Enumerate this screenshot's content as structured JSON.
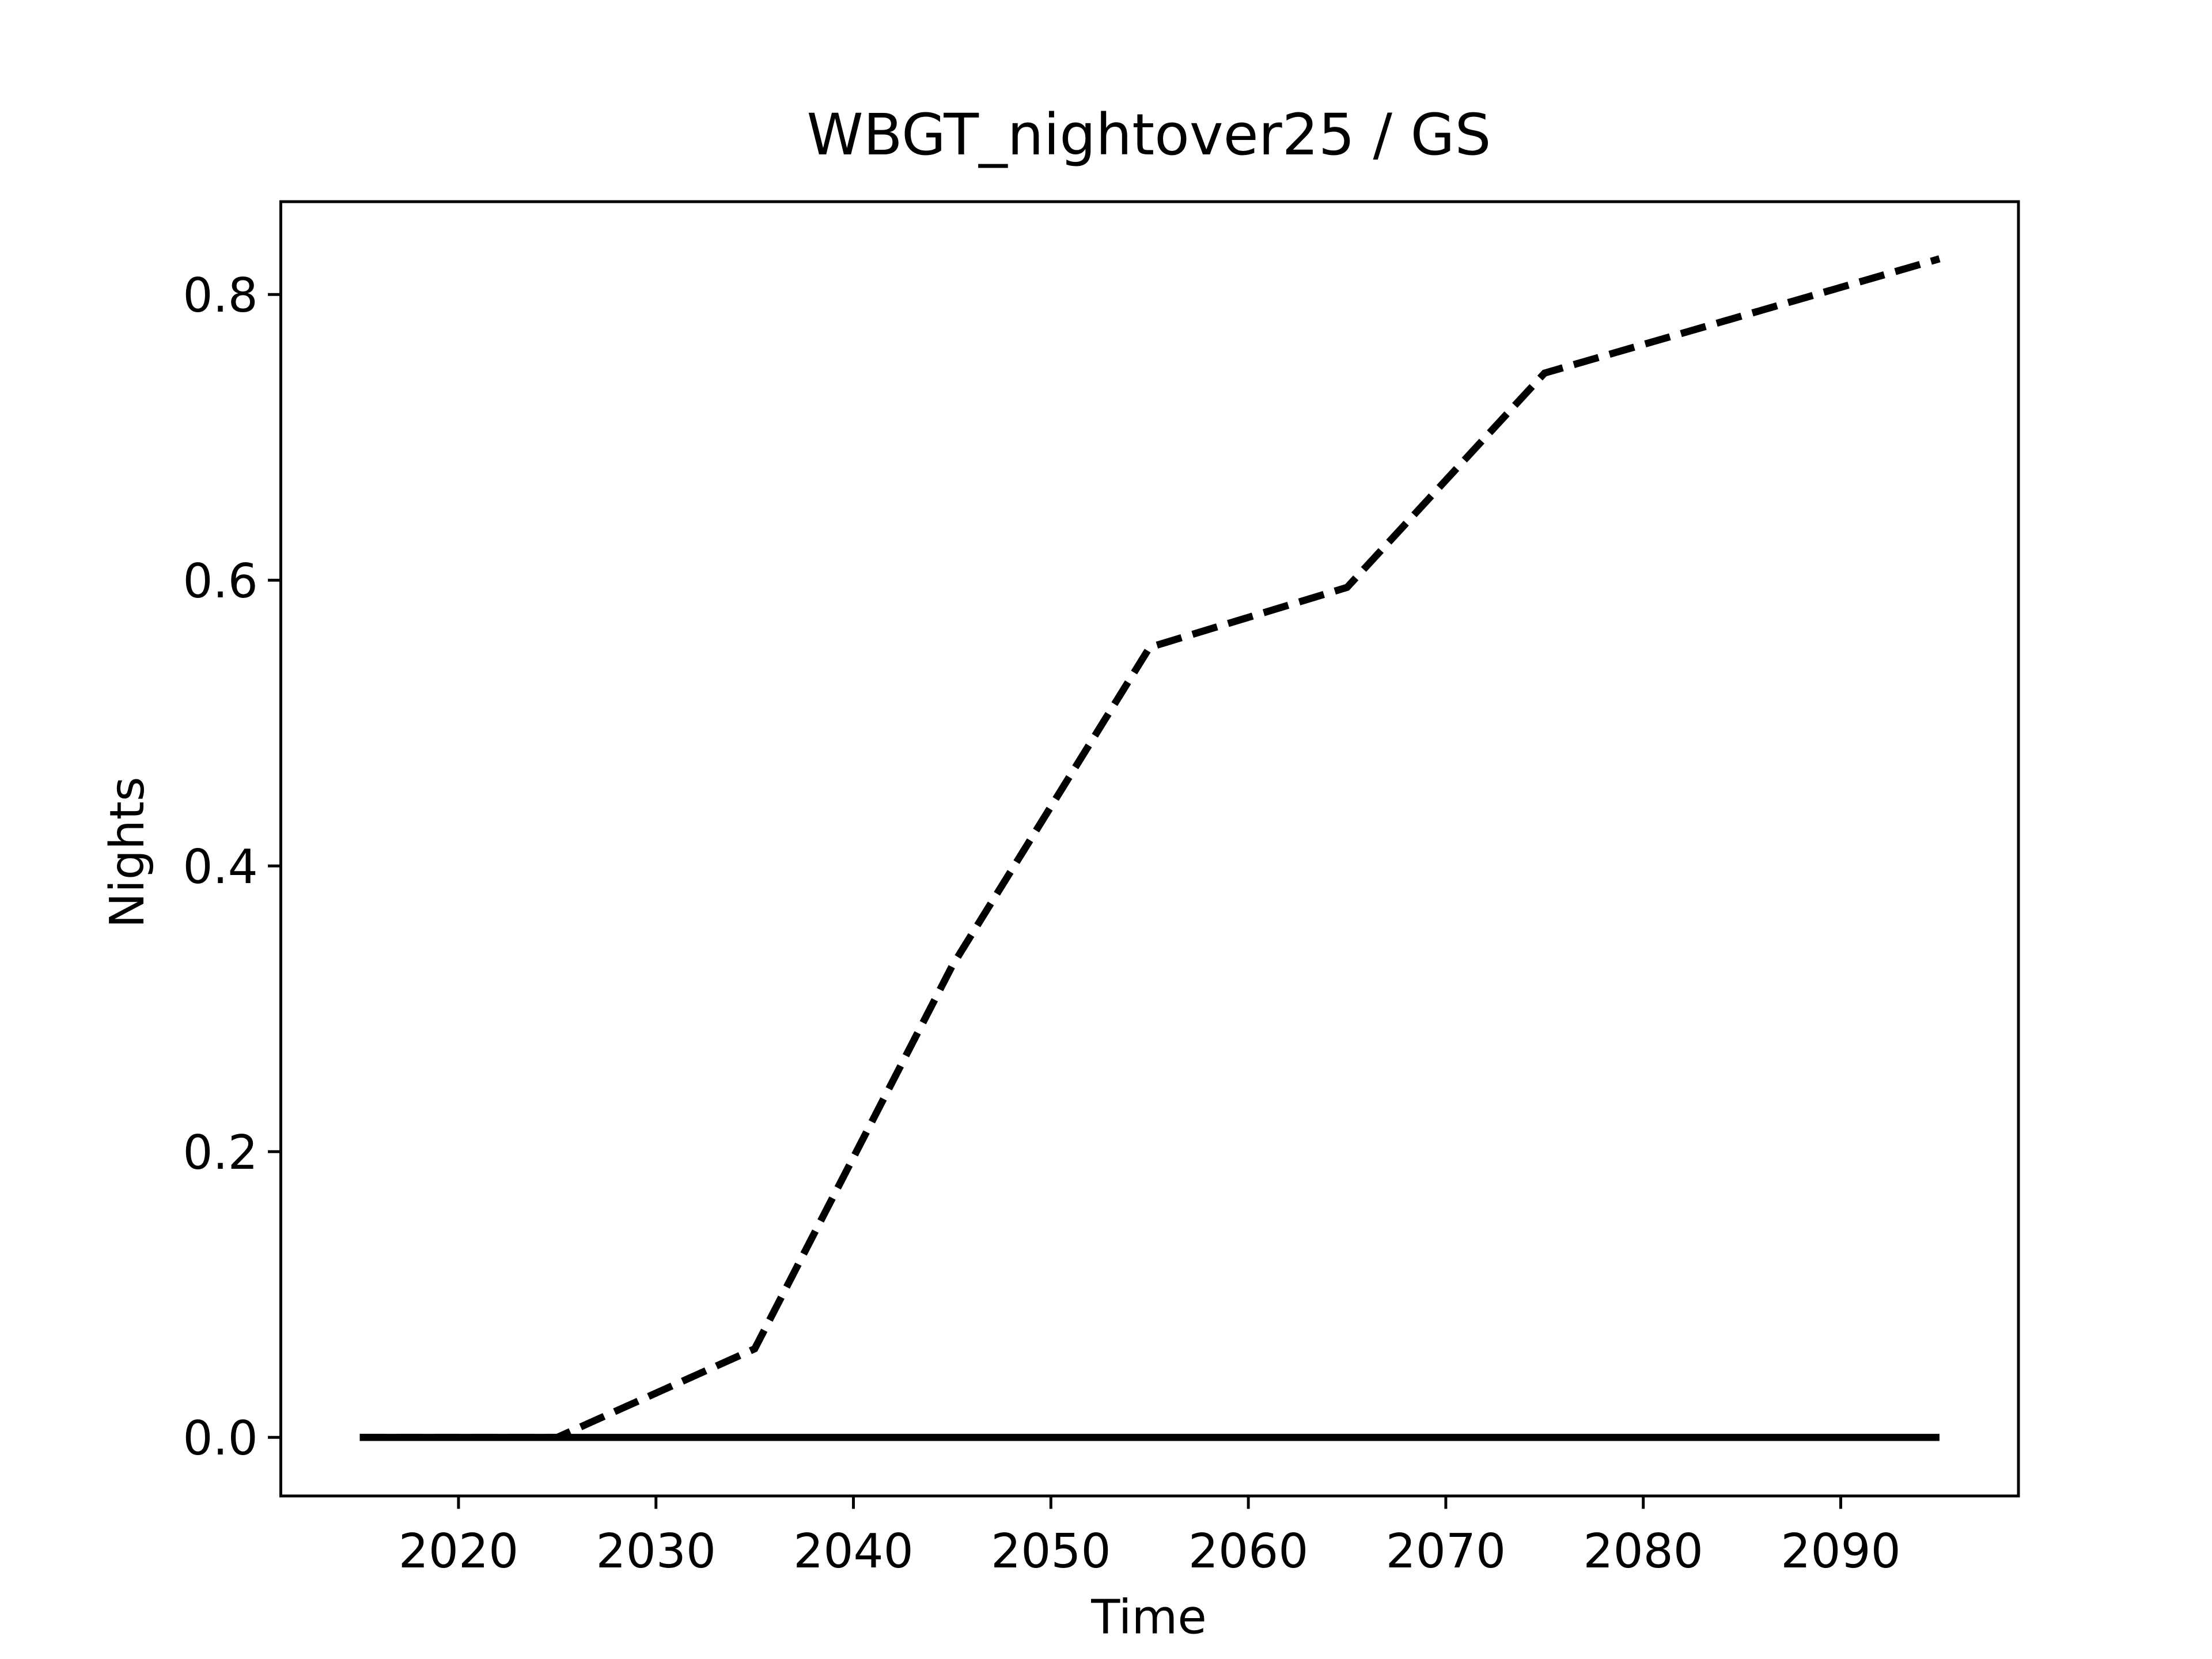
{
  "chart_data": {
    "type": "line",
    "title": "WBGT_nightover25 / GS",
    "x_label": "Time",
    "y_label": "Nights",
    "x": [
      2015,
      2025,
      2035,
      2045,
      2055,
      2065,
      2075,
      2085,
      2095
    ],
    "series": [
      {
        "color": "#000000",
        "style": "dashed",
        "values": [
          0,
          0,
          0.062,
          0.33,
          0.553,
          0.595,
          0.745,
          0.785,
          0.825
        ]
      },
      {
        "color": "#000000",
        "style": "solid",
        "values": [
          0,
          0,
          0,
          0,
          0,
          0,
          0,
          0,
          0
        ]
      }
    ],
    "xlim": [
      2011,
      2099
    ],
    "xticks": [
      2020,
      2030,
      2040,
      2050,
      2060,
      2070,
      2080,
      2090
    ],
    "ylim": [
      -0.041,
      0.865
    ],
    "yticks": [
      {
        "value": 0,
        "label": "0.0"
      },
      0.2,
      0.4,
      0.6,
      0.8
    ],
    "grid": false
  }
}
